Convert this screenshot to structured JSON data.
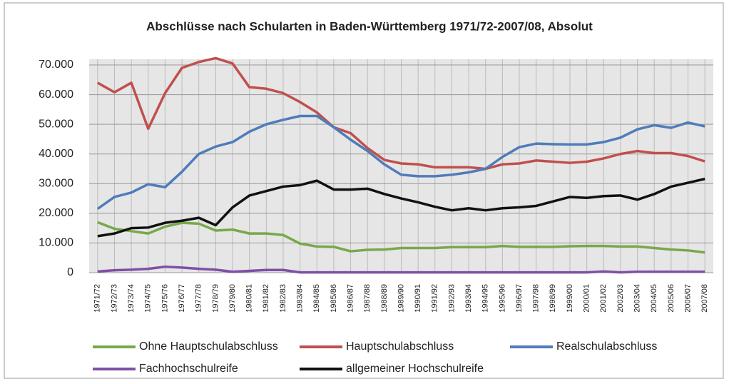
{
  "chart_data": {
    "type": "line",
    "title": "Abschlüsse nach Schularten in Baden-Württemberg 1971/72-2007/08, Absolut",
    "categories": [
      "1971/72",
      "1972/73",
      "1973/74",
      "1974/75",
      "1975/76",
      "1976/77",
      "1977/78",
      "1978/79",
      "1979/80",
      "1980/81",
      "1981/82",
      "1982/83",
      "1983/84",
      "1984/85",
      "1985/86",
      "1986/87",
      "1987/88",
      "1988/89",
      "1989/90",
      "1990/91",
      "1991/92",
      "1992/93",
      "1993/94",
      "1994/95",
      "1995/96",
      "1996/97",
      "1997/98",
      "1998/99",
      "1999/00",
      "2000/01",
      "2001/02",
      "2002/03",
      "2003/04",
      "2004/05",
      "2005/06",
      "2006/07",
      "2007/08"
    ],
    "series": [
      {
        "name": "Ohne Hauptschulabschluss",
        "color": "#77a94a",
        "values": [
          17000,
          14800,
          14000,
          13200,
          15500,
          16800,
          16500,
          14200,
          14500,
          13200,
          13200,
          12700,
          9800,
          8800,
          8700,
          7200,
          7700,
          7800,
          8300,
          8300,
          8300,
          8600,
          8600,
          8600,
          9000,
          8700,
          8700,
          8700,
          8900,
          9000,
          9000,
          8800,
          8800,
          8300,
          7800,
          7500,
          6800
        ]
      },
      {
        "name": "Hauptschulabschluss",
        "color": "#c0504d",
        "values": [
          64000,
          60800,
          64000,
          48500,
          60500,
          69000,
          71000,
          72300,
          70500,
          62500,
          62000,
          60500,
          57500,
          54000,
          49000,
          47000,
          42000,
          38000,
          36800,
          36500,
          35500,
          35500,
          35500,
          35000,
          36500,
          36800,
          37800,
          37400,
          37000,
          37400,
          38500,
          40000,
          41000,
          40300,
          40300,
          39300,
          37500
        ]
      },
      {
        "name": "Realschulabschluss",
        "color": "#4f7cba",
        "values": [
          21500,
          25500,
          27000,
          29800,
          28800,
          34000,
          40000,
          42500,
          44000,
          47500,
          50000,
          51500,
          52800,
          52800,
          49000,
          44800,
          41000,
          36500,
          33000,
          32500,
          32500,
          33000,
          33800,
          35000,
          39000,
          42300,
          43500,
          43300,
          43200,
          43200,
          44000,
          45500,
          48300,
          49700,
          48800,
          50600,
          49300
        ]
      },
      {
        "name": "Fachhochschulreife",
        "color": "#7f4fa6",
        "values": [
          400,
          800,
          1000,
          1300,
          2000,
          1700,
          1300,
          1000,
          300,
          600,
          900,
          900,
          100,
          100,
          100,
          100,
          100,
          100,
          100,
          100,
          100,
          100,
          100,
          100,
          100,
          100,
          100,
          100,
          100,
          100,
          400,
          100,
          300,
          300,
          300,
          300,
          300
        ]
      },
      {
        "name": "allgemeiner Hochschulreife",
        "color": "#111111",
        "values": [
          12300,
          13200,
          15000,
          15200,
          16800,
          17500,
          18500,
          16000,
          22000,
          26000,
          27500,
          29000,
          29500,
          31000,
          28000,
          28000,
          28300,
          26500,
          25000,
          23700,
          22200,
          21000,
          21700,
          21000,
          21700,
          22000,
          22500,
          24000,
          25500,
          25200,
          25800,
          26000,
          24600,
          26500,
          29000,
          30300,
          31600
        ]
      }
    ],
    "ylim": [
      0,
      70000
    ],
    "yticks": [
      0,
      {
        "value": 10000,
        "label": "10.000"
      },
      {
        "value": 20000,
        "label": "20.000"
      },
      {
        "value": 30000,
        "label": "30.000"
      },
      {
        "value": 40000,
        "label": "40.000"
      },
      {
        "value": 50000,
        "label": "50.000"
      },
      {
        "value": 60000,
        "label": "60.000"
      },
      {
        "value": 70000,
        "label": "70.000"
      }
    ],
    "grid": true
  }
}
